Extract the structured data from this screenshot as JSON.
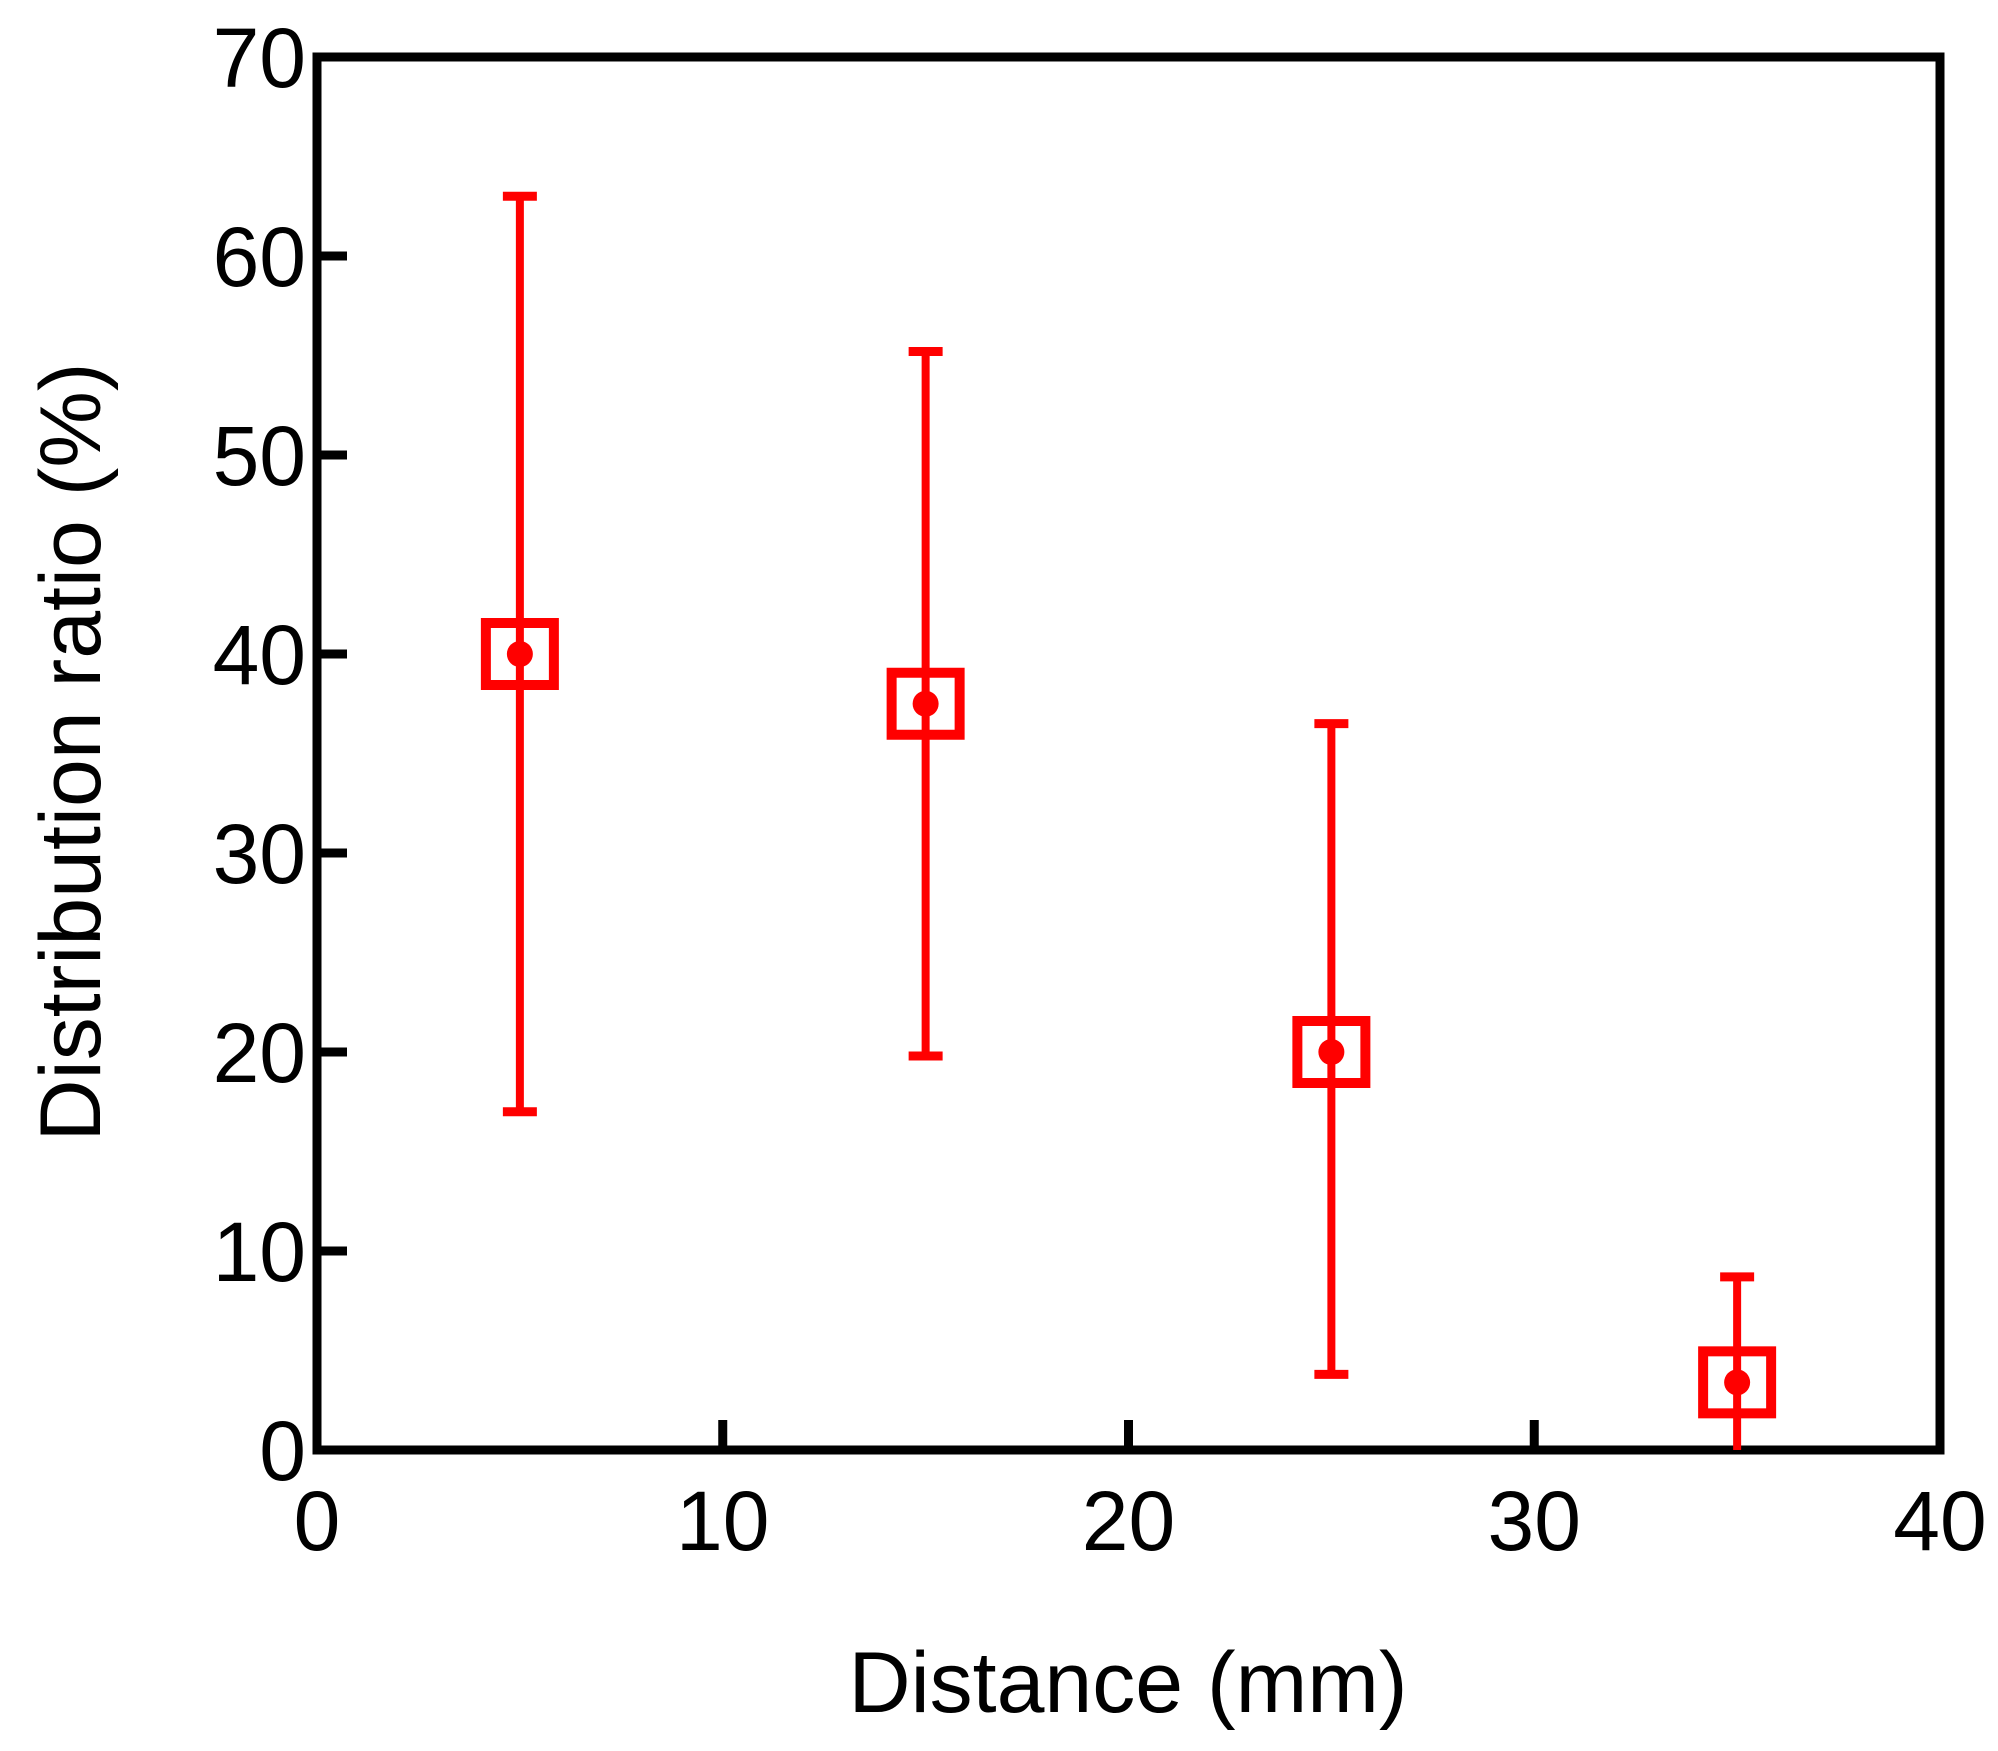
{
  "chart_data": {
    "type": "scatter",
    "title": "",
    "xlabel": "Distance (mm)",
    "ylabel": "Distribution ratio (%)",
    "xlim": [
      0,
      40
    ],
    "ylim": [
      0,
      70
    ],
    "x_ticks": [
      0,
      10,
      20,
      30,
      40
    ],
    "y_ticks": [
      0,
      10,
      20,
      30,
      40,
      50,
      60,
      70
    ],
    "grid": false,
    "legend": null,
    "series": [
      {
        "name": "Distribution ratio",
        "color": "#ff0000",
        "marker": "open-square-with-dot",
        "points": [
          {
            "x": 5,
            "y": 40.0,
            "err_low": 17.0,
            "err_high": 63.0
          },
          {
            "x": 15,
            "y": 37.5,
            "err_low": 19.8,
            "err_high": 55.2
          },
          {
            "x": 25,
            "y": 20.0,
            "err_low": 3.8,
            "err_high": 36.5
          },
          {
            "x": 35,
            "y": 3.4,
            "err_low": 0.0,
            "err_high": 8.7
          }
        ]
      }
    ]
  },
  "axes": {
    "x_title": "Distance (mm)",
    "y_title": "Distribution ratio (%)",
    "x_tick_labels": [
      "0",
      "10",
      "20",
      "30",
      "40"
    ],
    "y_tick_labels": [
      "0",
      "10",
      "20",
      "30",
      "40",
      "50",
      "60",
      "70"
    ]
  },
  "colors": {
    "series": "#ff0000",
    "axis": "#000000",
    "background": "#ffffff"
  }
}
